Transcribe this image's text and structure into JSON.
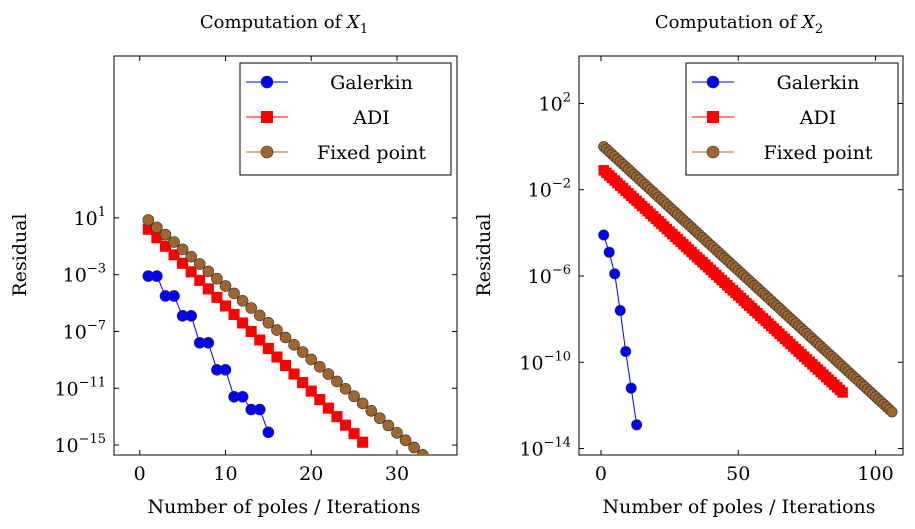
{
  "chart_data": [
    {
      "type": "line",
      "title": "Computation of X",
      "title_subscript": "1",
      "xlabel": "Number of poles / Iterations",
      "ylabel": "Residual",
      "xlim": [
        -3,
        37
      ],
      "ylim": [
        -15.7,
        12.4
      ],
      "y_scale": "log10",
      "x_ticks": [
        0,
        10,
        20,
        30
      ],
      "y_ticks": [
        {
          "base": "10",
          "exp": "1",
          "log": 1
        },
        {
          "base": "10",
          "exp": "−3",
          "log": -3
        },
        {
          "base": "10",
          "exp": "−7",
          "log": -7
        },
        {
          "base": "10",
          "exp": "−11",
          "log": -11
        },
        {
          "base": "10",
          "exp": "−15",
          "log": -15
        }
      ],
      "legend_position": "top-right",
      "series": [
        {
          "name": "Galerkin",
          "color": "#0000ff",
          "marker": "circle",
          "x": [
            1,
            2,
            3,
            4,
            5,
            6,
            7,
            8,
            9,
            10,
            11,
            12,
            13,
            14,
            15
          ],
          "log_y": [
            -3.1,
            -3.1,
            -4.5,
            -4.5,
            -5.9,
            -5.9,
            -7.8,
            -7.8,
            -9.7,
            -9.7,
            -11.6,
            -11.6,
            -12.5,
            -12.5,
            -14.1
          ]
        },
        {
          "name": "ADI",
          "color": "#ff0000",
          "marker": "square",
          "x": [
            1,
            2,
            3,
            4,
            5,
            6,
            7,
            8,
            9,
            10,
            11,
            12,
            13,
            14,
            15,
            16,
            17,
            18,
            19,
            20,
            21,
            22,
            23,
            24,
            25,
            26
          ],
          "log_y": [
            0.2,
            -0.4,
            -1.0,
            -1.6,
            -2.2,
            -2.8,
            -3.4,
            -4.0,
            -4.6,
            -5.2,
            -5.8,
            -6.4,
            -7.0,
            -7.6,
            -8.2,
            -8.8,
            -9.4,
            -10.0,
            -10.6,
            -11.2,
            -11.8,
            -12.4,
            -13.0,
            -13.6,
            -14.2,
            -14.8
          ]
        },
        {
          "name": "Fixed point",
          "color": "#a0652f",
          "marker": "circle",
          "x": [
            1,
            2,
            3,
            4,
            5,
            6,
            7,
            8,
            9,
            10,
            11,
            12,
            13,
            14,
            15,
            16,
            17,
            18,
            19,
            20,
            21,
            22,
            23,
            24,
            25,
            26,
            27,
            28,
            29,
            30,
            31,
            32,
            33,
            34
          ],
          "log_y": [
            0.85,
            0.33,
            -0.18,
            -0.7,
            -1.22,
            -1.73,
            -2.25,
            -2.77,
            -3.28,
            -3.8,
            -4.32,
            -4.84,
            -5.35,
            -5.87,
            -6.39,
            -6.9,
            -7.42,
            -7.94,
            -8.45,
            -8.97,
            -9.49,
            -10.0,
            -10.52,
            -11.04,
            -11.56,
            -12.07,
            -12.59,
            -13.11,
            -13.62,
            -14.14,
            -14.66,
            -15.17,
            -15.69,
            -16.21
          ]
        }
      ]
    },
    {
      "type": "line",
      "title": "Computation of X",
      "title_subscript": "2",
      "xlabel": "Number of poles / Iterations",
      "ylabel": "Residual",
      "xlim": [
        -8,
        110
      ],
      "ylim": [
        -14.3,
        4.2
      ],
      "y_scale": "log10",
      "x_ticks": [
        0,
        50,
        100
      ],
      "y_ticks": [
        {
          "base": "10",
          "exp": "2",
          "log": 2
        },
        {
          "base": "10",
          "exp": "−2",
          "log": -2
        },
        {
          "base": "10",
          "exp": "−6",
          "log": -6
        },
        {
          "base": "10",
          "exp": "−10",
          "log": -10
        },
        {
          "base": "10",
          "exp": "−14",
          "log": -14
        }
      ],
      "legend_position": "top-right",
      "series": [
        {
          "name": "Galerkin",
          "color": "#0000ff",
          "marker": "circle",
          "x": [
            1,
            3,
            5,
            7,
            9,
            11,
            13
          ],
          "log_y": [
            -4.1,
            -4.9,
            -5.9,
            -7.6,
            -9.5,
            -11.2,
            -12.9
          ]
        },
        {
          "name": "ADI",
          "color": "#ff0000",
          "marker": "square",
          "x_range": [
            1,
            88
          ],
          "log_y_range": [
            -1.1,
            -11.4
          ]
        },
        {
          "name": "Fixed point",
          "color": "#a0652f",
          "marker": "circle",
          "x_range": [
            1,
            106
          ],
          "log_y_range": [
            0.0,
            -12.3
          ]
        }
      ]
    }
  ]
}
